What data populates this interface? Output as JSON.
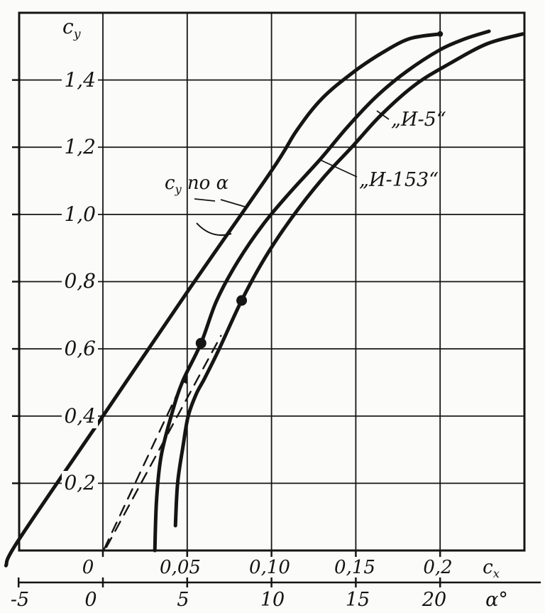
{
  "figure": {
    "y_axis_label": {
      "base": "c",
      "sub": "y"
    },
    "x_axis_label": {
      "base": "c",
      "sub": "x"
    },
    "alpha_axis_label": "α°",
    "lift_label": {
      "base": "c",
      "sub": "y",
      "rest": " по α"
    },
    "i5_label": "„И-5“",
    "i153_label": "„И-153“"
  },
  "axes": {
    "y_ticks": [
      {
        "label": "1,4",
        "value": 1.4
      },
      {
        "label": "1,2",
        "value": 1.2
      },
      {
        "label": "1,0",
        "value": 1.0
      },
      {
        "label": "0,8",
        "value": 0.8
      },
      {
        "label": "0,6",
        "value": 0.6
      },
      {
        "label": "0,4",
        "value": 0.4
      },
      {
        "label": "0,2",
        "value": 0.2
      }
    ],
    "x_ticks": [
      {
        "label": "0",
        "value": 0
      },
      {
        "label": "0,05",
        "value": 0.05
      },
      {
        "label": "0,10",
        "value": 0.1
      },
      {
        "label": "0,15",
        "value": 0.15
      },
      {
        "label": "0,2",
        "value": 0.2
      }
    ],
    "alpha_ticks": [
      {
        "label": "-5",
        "value": -5
      },
      {
        "label": "0",
        "value": 0
      },
      {
        "label": "5",
        "value": 5
      },
      {
        "label": "10",
        "value": 10
      },
      {
        "label": "15",
        "value": 15
      },
      {
        "label": "20",
        "value": 20
      }
    ]
  },
  "chart_data": {
    "type": "line",
    "title": "Lift curve cy(α) and drag polars cy(cx) of the И-5 and И-153 aircraft",
    "xlabel": "cx (lower scale: α, degrees)",
    "ylabel": "cy",
    "grid": true,
    "ink_color": "#151515",
    "background_color": "#fbfbf9",
    "x_axis_cx": {
      "range": [
        -0.05,
        0.25
      ],
      "ticks": [
        0,
        0.05,
        0.1,
        0.15,
        0.2
      ]
    },
    "x_axis_alpha": {
      "range": [
        -5,
        25
      ],
      "ticks": [
        -5,
        0,
        5,
        10,
        15,
        20
      ]
    },
    "y_axis": {
      "range": [
        0,
        1.6
      ],
      "ticks": [
        0.2,
        0.4,
        0.6,
        0.8,
        1.0,
        1.2,
        1.4
      ]
    },
    "series": [
      {
        "name": "cy по α",
        "axis": "alpha",
        "style": "solid",
        "points": [
          [
            -5.75,
            -0.045
          ],
          [
            -5,
            0.031
          ],
          [
            0,
            0.4
          ],
          [
            5,
            0.769
          ],
          [
            10,
            1.13
          ],
          [
            11.5,
            1.25
          ],
          [
            13,
            1.345
          ],
          [
            14.9,
            1.425
          ],
          [
            16.6,
            1.482
          ],
          [
            18.2,
            1.523
          ],
          [
            20,
            1.537
          ]
        ]
      },
      {
        "name": "„И-153“",
        "axis": "cx",
        "style": "solid",
        "points": [
          [
            0.0308,
            0
          ],
          [
            0.0318,
            0.15
          ],
          [
            0.0345,
            0.28
          ],
          [
            0.0405,
            0.4
          ],
          [
            0.047,
            0.5
          ],
          [
            0.0582,
            0.617
          ],
          [
            0.0675,
            0.744
          ],
          [
            0.08,
            0.86
          ],
          [
            0.095,
            0.97
          ],
          [
            0.11,
            1.06
          ],
          [
            0.1287,
            1.163
          ],
          [
            0.145,
            1.26
          ],
          [
            0.162,
            1.35
          ],
          [
            0.18,
            1.425
          ],
          [
            0.2,
            1.49
          ],
          [
            0.215,
            1.523
          ],
          [
            0.229,
            1.545
          ]
        ]
      },
      {
        "name": "„И-5“",
        "axis": "cx",
        "style": "solid",
        "points": [
          [
            0.043,
            0.074
          ],
          [
            0.0443,
            0.2
          ],
          [
            0.0475,
            0.31
          ],
          [
            0.0506,
            0.4
          ],
          [
            0.0553,
            0.465
          ],
          [
            0.0603,
            0.512
          ],
          [
            0.0688,
            0.598
          ],
          [
            0.0823,
            0.744
          ],
          [
            0.096,
            0.87
          ],
          [
            0.112,
            0.99
          ],
          [
            0.13,
            1.105
          ],
          [
            0.1485,
            1.205
          ],
          [
            0.1646,
            1.294
          ],
          [
            0.185,
            1.385
          ],
          [
            0.206,
            1.45
          ],
          [
            0.228,
            1.508
          ],
          [
            0.249,
            1.537
          ]
        ]
      },
      {
        "name": "tangent to И-153 polar",
        "axis": "cx",
        "style": "dashed",
        "points": [
          [
            0.0008,
            0.005
          ],
          [
            0.0593,
            0.628
          ]
        ]
      },
      {
        "name": "tangent to И-5 polar",
        "axis": "cx",
        "style": "dashed",
        "points": [
          [
            0.0021,
            0.01
          ],
          [
            0.07,
            0.639
          ]
        ]
      }
    ],
    "markers": [
      {
        "series": "„И-153“",
        "cx": 0.0582,
        "cy": 0.617
      },
      {
        "series": "„И-5“",
        "cx": 0.0823,
        "cy": 0.744
      }
    ]
  }
}
